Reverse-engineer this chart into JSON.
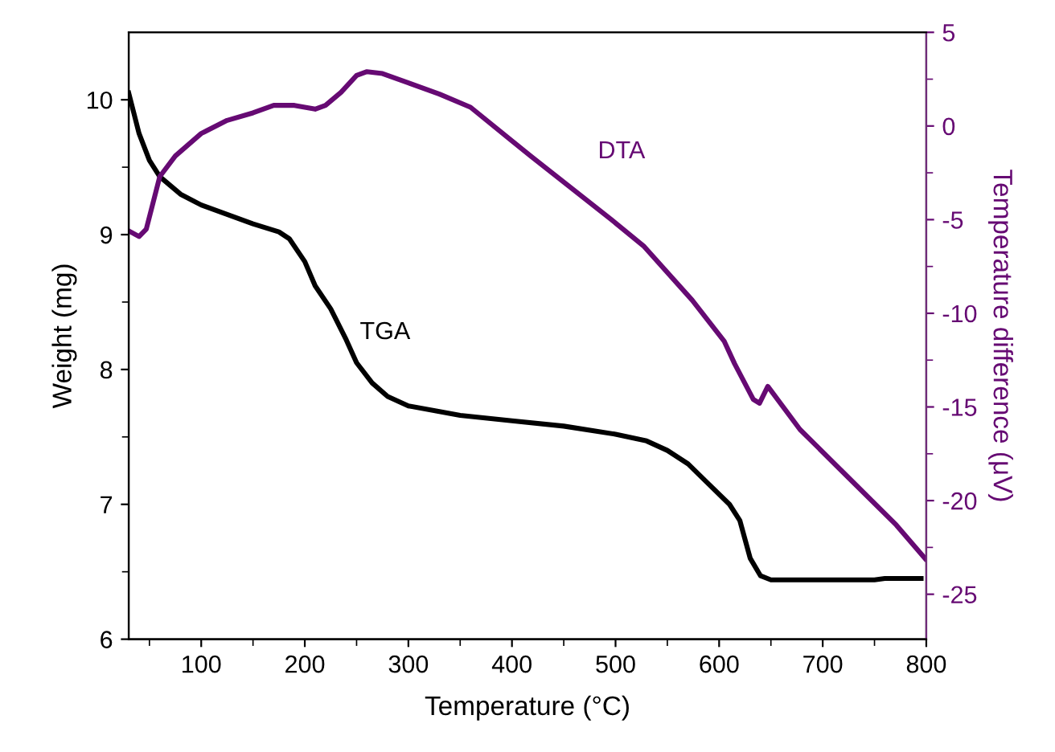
{
  "chart_data": {
    "type": "line",
    "xlabel": "Temperature (°C)",
    "ylabel": "Weight (mg)",
    "y2label": "Temperature difference (μV)",
    "xlim": [
      30,
      800
    ],
    "ylim": [
      6,
      10.5
    ],
    "y2lim": [
      -27.4,
      5
    ],
    "xticks": [
      {
        "value": 50,
        "label": null
      },
      100,
      {
        "value": 150,
        "label": null
      },
      200,
      {
        "value": 250,
        "label": null
      },
      300,
      {
        "value": 350,
        "label": null
      },
      400,
      {
        "value": 450,
        "label": null
      },
      500,
      {
        "value": 550,
        "label": null
      },
      600,
      {
        "value": 650,
        "label": null
      },
      700,
      {
        "value": 750,
        "label": null
      },
      800
    ],
    "yticks": [
      6,
      {
        "value": 6.5,
        "label": null
      },
      7,
      {
        "value": 7.5,
        "label": null
      },
      8,
      {
        "value": 8.5,
        "label": null
      },
      9,
      {
        "value": 9.5,
        "label": null
      },
      10
    ],
    "y2ticks": [
      -25,
      {
        "value": -22.5,
        "label": null
      },
      -20,
      {
        "value": -17.5,
        "label": null
      },
      -15,
      {
        "value": -12.5,
        "label": null
      },
      -10,
      {
        "value": -7.5,
        "label": null
      },
      -5,
      {
        "value": -2.5,
        "label": null
      },
      0,
      {
        "value": 2.5,
        "label": null
      },
      5
    ],
    "grid": false,
    "legend": false,
    "line_style": "solid",
    "marker": "none",
    "series": [
      {
        "name": "TGA",
        "color": "#000000",
        "x": [
          30,
          40,
          50,
          60,
          80,
          100,
          125,
          150,
          175,
          185,
          200,
          210,
          225,
          240,
          250,
          265,
          280,
          300,
          350,
          400,
          450,
          500,
          530,
          550,
          570,
          590,
          610,
          620,
          630,
          640,
          650,
          700,
          750,
          760,
          795
        ],
        "values": [
          10.05,
          9.75,
          9.55,
          9.43,
          9.3,
          9.22,
          9.15,
          9.08,
          9.02,
          8.97,
          8.8,
          8.62,
          8.45,
          8.22,
          8.05,
          7.9,
          7.8,
          7.73,
          7.66,
          7.62,
          7.58,
          7.52,
          7.47,
          7.4,
          7.3,
          7.15,
          7.0,
          6.88,
          6.6,
          6.47,
          6.44,
          6.44,
          6.44,
          6.45,
          6.45
        ]
      },
      {
        "name": "DTA",
        "color": "#660a73",
        "axis": "y2",
        "x": [
          30,
          40,
          47,
          60,
          75,
          100,
          125,
          150,
          170,
          190,
          210,
          220,
          235,
          250,
          260,
          275,
          300,
          330,
          360,
          400,
          418,
          496,
          527,
          574,
          605,
          615,
          633,
          639,
          647,
          678,
          729,
          771,
          799
        ],
        "values": [
          -5.6,
          -5.9,
          -5.5,
          -2.7,
          -1.6,
          -0.4,
          0.3,
          0.7,
          1.1,
          1.1,
          0.9,
          1.1,
          1.8,
          2.7,
          2.9,
          2.8,
          2.3,
          1.7,
          1.0,
          -0.8,
          -1.6,
          -5.0,
          -6.4,
          -9.3,
          -11.5,
          -12.7,
          -14.6,
          -14.8,
          -13.9,
          -16.2,
          -19.0,
          -21.3,
          -23.1
        ]
      }
    ]
  }
}
